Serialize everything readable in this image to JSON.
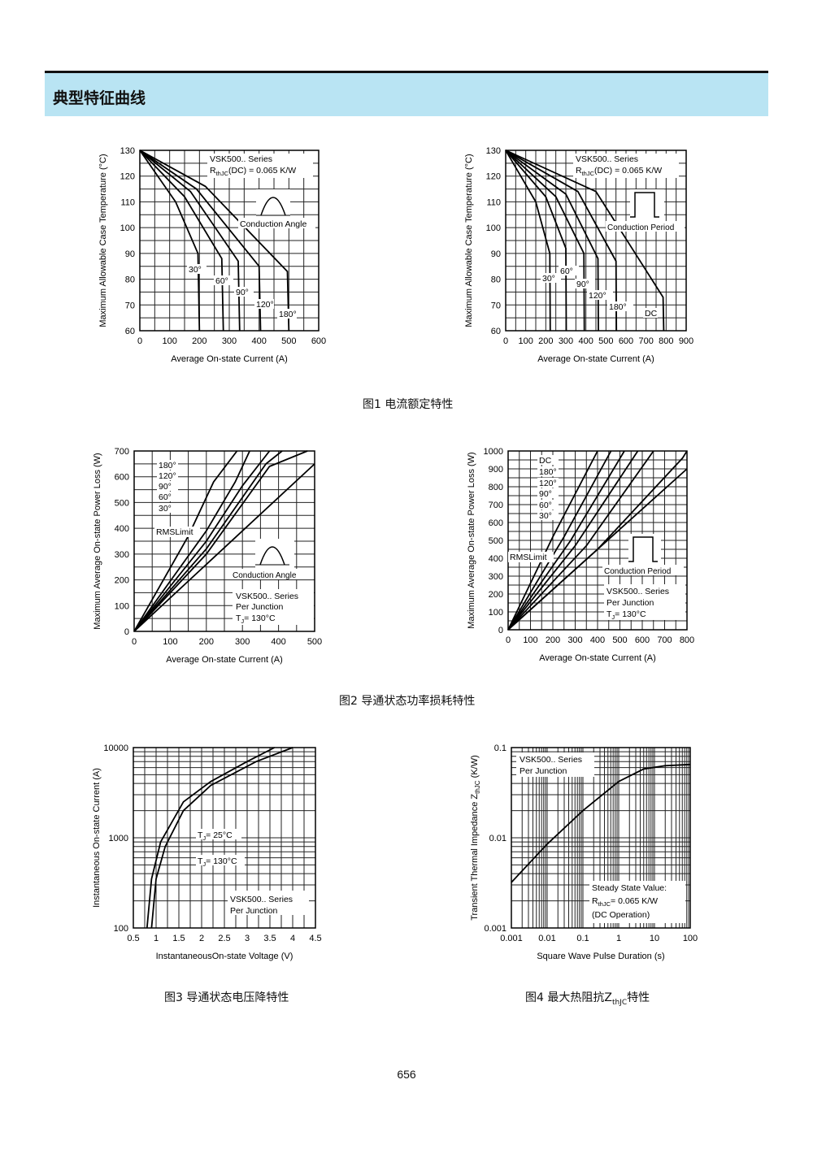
{
  "section_title": "典型特征曲线",
  "page_number": "656",
  "captions": {
    "fig1": "图1 电流额定特性",
    "fig2": "图2 导通状态功率损耗特性",
    "fig3": "图3 导通状态电压降特性",
    "fig4_prefix": "图4 最大热阻抗Z",
    "fig4_sub": "thJC",
    "fig4_suffix": "特性"
  },
  "chart_data": [
    {
      "id": "fig1-left",
      "type": "line",
      "xlabel": "Average On-state Current (A)",
      "ylabel": "Maximum Allowable Case Temperature (°C)",
      "xlim": [
        0,
        600
      ],
      "ylim": [
        60,
        130
      ],
      "xticks": [
        0,
        100,
        200,
        300,
        400,
        500,
        600
      ],
      "yticks": [
        60,
        70,
        80,
        90,
        100,
        110,
        120,
        130
      ],
      "grid": true,
      "annotations": [
        "VSK500.. Series",
        "R",
        "thJC",
        "(DC) = 0.065 K/W",
        "Conduction Angle"
      ],
      "series": [
        {
          "name": "30°",
          "points": [
            [
              0,
              130
            ],
            [
              120,
              110
            ],
            [
              195,
              90
            ],
            [
              200,
              60
            ]
          ]
        },
        {
          "name": "60°",
          "points": [
            [
              0,
              130
            ],
            [
              150,
              112
            ],
            [
              275,
              88
            ],
            [
              280,
              60
            ]
          ]
        },
        {
          "name": "90°",
          "points": [
            [
              0,
              130
            ],
            [
              170,
              114
            ],
            [
              330,
              87
            ],
            [
              335,
              60
            ]
          ]
        },
        {
          "name": "120°",
          "points": [
            [
              0,
              130
            ],
            [
              190,
              115
            ],
            [
              400,
              85
            ],
            [
              405,
              60
            ]
          ]
        },
        {
          "name": "180°",
          "points": [
            [
              0,
              130
            ],
            [
              220,
              116
            ],
            [
              495,
              83
            ],
            [
              500,
              60
            ]
          ]
        }
      ]
    },
    {
      "id": "fig1-right",
      "type": "line",
      "xlabel": "Average On-state Current (A)",
      "ylabel": "Maximum Allowable Case Temperature (°C)",
      "xlim": [
        0,
        900
      ],
      "ylim": [
        60,
        130
      ],
      "xticks": [
        0,
        100,
        200,
        300,
        400,
        500,
        600,
        700,
        800,
        900
      ],
      "yticks": [
        60,
        70,
        80,
        90,
        100,
        110,
        120,
        130
      ],
      "grid": true,
      "annotations": [
        "VSK500.. Series",
        "R",
        "thJC",
        "(DC) = 0.065 K/W",
        "Conduction Period"
      ],
      "series": [
        {
          "name": "30°",
          "points": [
            [
              0,
              130
            ],
            [
              150,
              110
            ],
            [
              220,
              90
            ],
            [
              222,
              60
            ]
          ]
        },
        {
          "name": "60°",
          "points": [
            [
              0,
              130
            ],
            [
              200,
              112
            ],
            [
              300,
              92
            ],
            [
              302,
              60
            ]
          ]
        },
        {
          "name": "90°",
          "points": [
            [
              0,
              130
            ],
            [
              250,
              112
            ],
            [
              390,
              90
            ],
            [
              392,
              60
            ]
          ]
        },
        {
          "name": "120°",
          "points": [
            [
              0,
              130
            ],
            [
              300,
              113
            ],
            [
              460,
              88
            ],
            [
              462,
              60
            ]
          ]
        },
        {
          "name": "180°",
          "points": [
            [
              0,
              130
            ],
            [
              360,
              114
            ],
            [
              550,
              87
            ],
            [
              552,
              60
            ]
          ]
        },
        {
          "name": "DC",
          "points": [
            [
              0,
              130
            ],
            [
              450,
              114
            ],
            [
              785,
              73
            ],
            [
              788,
              60
            ]
          ]
        }
      ]
    },
    {
      "id": "fig2-left",
      "type": "line",
      "xlabel": "Average On-state Current (A)",
      "ylabel": "Maximum Average On-state Power Loss (W)",
      "xlim": [
        0,
        500
      ],
      "ylim": [
        0,
        700
      ],
      "xticks": [
        0,
        100,
        200,
        300,
        400,
        500
      ],
      "yticks": [
        0,
        100,
        200,
        300,
        400,
        500,
        600,
        700
      ],
      "grid": true,
      "annotations": [
        "RMSLimit",
        "Conduction Angle",
        "VSK500.. Series",
        "Per Junction",
        "T",
        "J",
        "= 130°C"
      ],
      "series": [
        {
          "name": "180°",
          "points": [
            [
              0,
              0
            ],
            [
              200,
              300
            ],
            [
              375,
              640
            ],
            [
              480,
              700
            ]
          ]
        },
        {
          "name": "120°",
          "points": [
            [
              0,
              0
            ],
            [
              200,
              320
            ],
            [
              365,
              650
            ],
            [
              410,
              700
            ]
          ]
        },
        {
          "name": "90°",
          "points": [
            [
              0,
              0
            ],
            [
              200,
              350
            ],
            [
              300,
              565
            ],
            [
              375,
              700
            ]
          ]
        },
        {
          "name": "60°",
          "points": [
            [
              0,
              0
            ],
            [
              200,
              390
            ],
            [
              280,
              580
            ],
            [
              320,
              700
            ]
          ]
        },
        {
          "name": "30°",
          "points": [
            [
              0,
              0
            ],
            [
              150,
              370
            ],
            [
              220,
              580
            ],
            [
              285,
              700
            ]
          ]
        },
        {
          "name": "RMS Limit",
          "points": [
            [
              0,
              0
            ],
            [
              500,
              650
            ]
          ]
        }
      ]
    },
    {
      "id": "fig2-right",
      "type": "line",
      "xlabel": "Average On-state Current (A)",
      "ylabel": "Maximum Average On-state Power Loss (W)",
      "xlim": [
        0,
        800
      ],
      "ylim": [
        0,
        1000
      ],
      "xticks": [
        0,
        100,
        200,
        300,
        400,
        500,
        600,
        700,
        800
      ],
      "yticks": [
        0,
        100,
        200,
        300,
        400,
        500,
        600,
        700,
        800,
        900,
        1000
      ],
      "grid": true,
      "annotations": [
        "RMSLimit",
        "Conduction Period",
        "VSK500.. Series",
        "Per Junction",
        "T",
        "J",
        "= 130°C"
      ],
      "series": [
        {
          "name": "DC",
          "points": [
            [
              0,
              0
            ],
            [
              400,
              450
            ],
            [
              780,
              960
            ],
            [
              800,
              1000
            ]
          ]
        },
        {
          "name": "180°",
          "points": [
            [
              0,
              0
            ],
            [
              350,
              470
            ],
            [
              650,
              1000
            ]
          ]
        },
        {
          "name": "120°",
          "points": [
            [
              0,
              0
            ],
            [
              300,
              470
            ],
            [
              580,
              1000
            ]
          ]
        },
        {
          "name": "90°",
          "points": [
            [
              0,
              0
            ],
            [
              280,
              500
            ],
            [
              520,
              1000
            ]
          ]
        },
        {
          "name": "60°",
          "points": [
            [
              0,
              0
            ],
            [
              250,
              520
            ],
            [
              460,
              1000
            ]
          ]
        },
        {
          "name": "30°",
          "points": [
            [
              0,
              0
            ],
            [
              200,
              520
            ],
            [
              400,
              1000
            ]
          ]
        },
        {
          "name": "RMS Limit",
          "points": [
            [
              0,
              0
            ],
            [
              800,
              900
            ]
          ]
        }
      ]
    },
    {
      "id": "fig3",
      "type": "line",
      "xlabel": "InstantaneousOn-state Voltage (V)",
      "ylabel": "Instantaneous On-state Current (A)",
      "xlim": [
        0.5,
        4.5
      ],
      "ylim": [
        100,
        10000
      ],
      "yscale": "log",
      "xticks": [
        0.5,
        1,
        1.5,
        2,
        2.5,
        3,
        3.5,
        4,
        4.5
      ],
      "ytick_labels": [
        "100",
        "1000",
        "10000"
      ],
      "grid": true,
      "annotations": [
        "VSK500.. Series",
        "Per Junction",
        "T",
        "J",
        "= 25°C",
        "T",
        "J",
        "= 130°C"
      ],
      "series": [
        {
          "name": "TJ = 25°C",
          "points": [
            [
              0.9,
              100
            ],
            [
              1.0,
              350
            ],
            [
              1.2,
              800
            ],
            [
              1.6,
              2000
            ],
            [
              2.2,
              3800
            ],
            [
              3.2,
              7000
            ],
            [
              4.0,
              10000
            ]
          ]
        },
        {
          "name": "TJ = 130°C",
          "points": [
            [
              0.8,
              100
            ],
            [
              0.9,
              350
            ],
            [
              1.1,
              900
            ],
            [
              1.6,
              2500
            ],
            [
              2.2,
              4200
            ],
            [
              3.0,
              7000
            ],
            [
              3.6,
              10000
            ]
          ]
        }
      ]
    },
    {
      "id": "fig4",
      "type": "line",
      "xlabel": "Square Wave Pulse Duration (s)",
      "ylabel": "Transient Thermal Impedance Z",
      "ylabel_sub": "thJC",
      "ylabel_suffix": "(K/W)",
      "xlim": [
        0.001,
        100
      ],
      "xscale": "log",
      "ylim": [
        0.001,
        0.1
      ],
      "yscale": "log",
      "xtick_labels": [
        "0.001",
        "0.01",
        "0.1",
        "1",
        "10",
        "100"
      ],
      "ytick_labels": [
        "0.001",
        "0.01",
        "0.1"
      ],
      "grid": true,
      "annotations": [
        "VSK500.. Series",
        "Per Junction",
        "Steady State Value:",
        "R",
        "thJC",
        "= 0.065 K/W",
        "(DC Operation)"
      ],
      "series": [
        {
          "name": "Z thJC",
          "points": [
            [
              0.001,
              0.0032
            ],
            [
              0.01,
              0.0085
            ],
            [
              0.1,
              0.02
            ],
            [
              1,
              0.042
            ],
            [
              5,
              0.058
            ],
            [
              20,
              0.063
            ],
            [
              100,
              0.065
            ]
          ]
        }
      ]
    }
  ]
}
